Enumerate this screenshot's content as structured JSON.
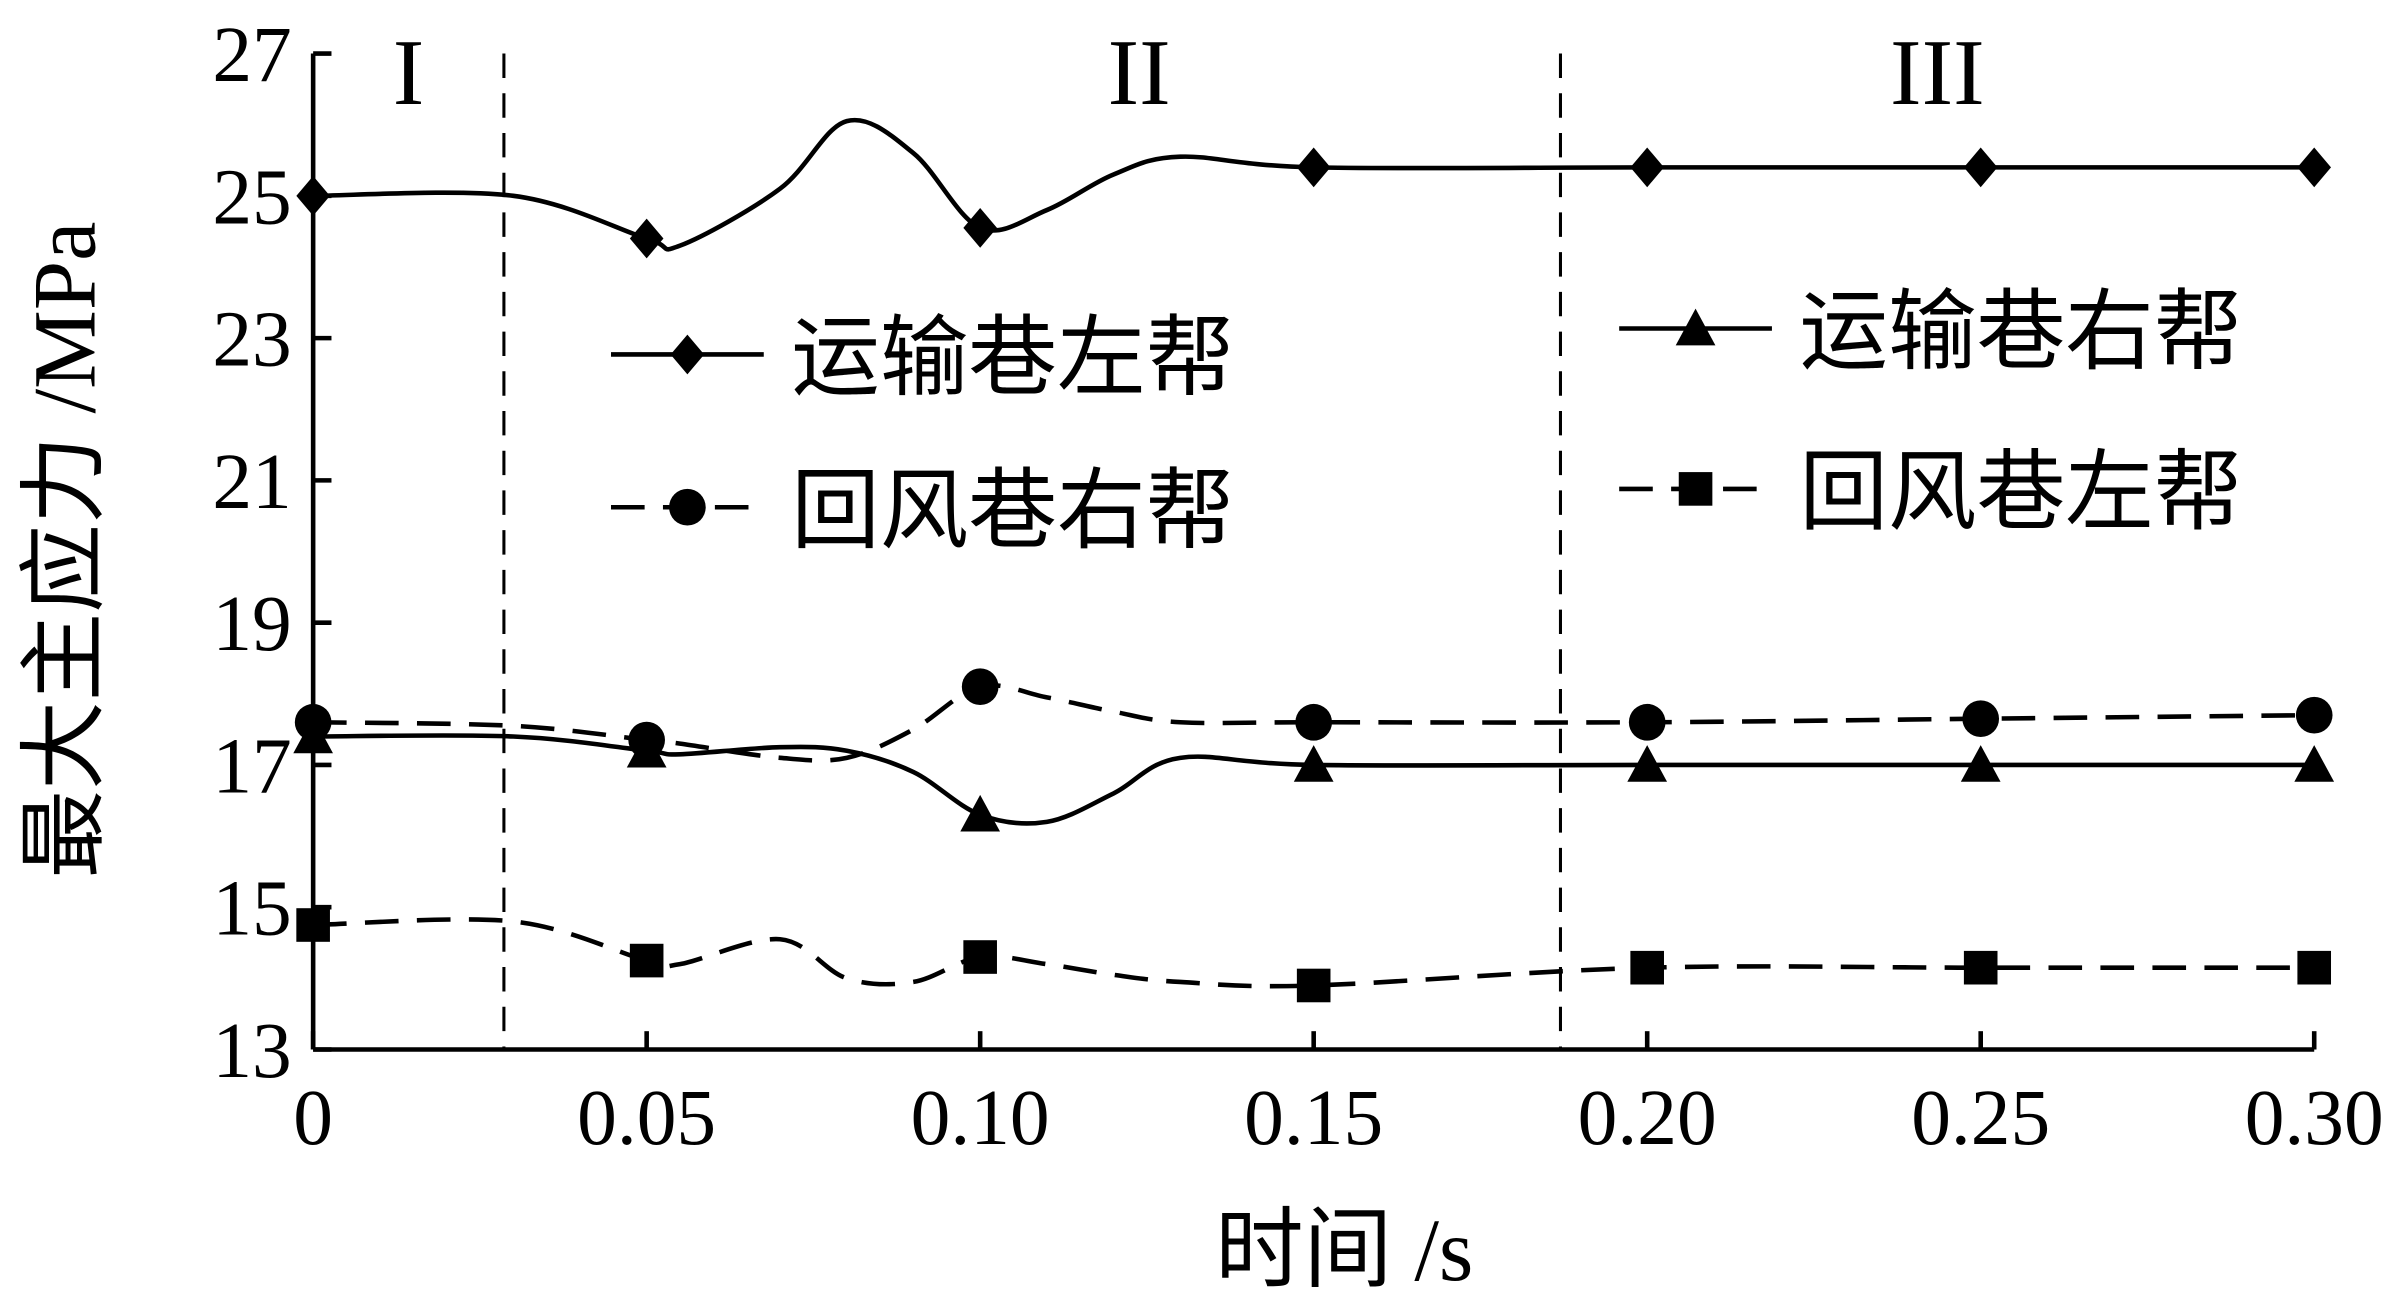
{
  "chart_data": {
    "type": "line",
    "xlabel": "时间 /s",
    "ylabel": "最大主应力 /MPa",
    "xlim": [
      0,
      0.3
    ],
    "ylim": [
      13,
      27
    ],
    "xticks": [
      0,
      0.05,
      {
        "value": 0.1,
        "label": "0.10"
      },
      0.15,
      {
        "value": 0.2,
        "label": "0.20"
      },
      0.25,
      {
        "value": 0.3,
        "label": "0.30"
      }
    ],
    "yticks": [
      13,
      15,
      17,
      19,
      21,
      23,
      25,
      27
    ],
    "dividers": [
      0.0286,
      0.187
    ],
    "region_labels": [
      "I",
      "II",
      "III"
    ],
    "x": [
      0,
      0.03,
      0.05,
      0.055,
      0.07,
      0.08,
      0.09,
      0.1,
      0.11,
      0.12,
      0.13,
      0.15,
      0.2,
      0.25,
      0.3
    ],
    "series": [
      {
        "name": "运输巷左帮",
        "color": "#000000",
        "marker": "diamond",
        "dashed": false,
        "values": [
          25.0,
          25.0,
          24.4,
          24.3,
          25.1,
          26.05,
          25.6,
          24.55,
          24.8,
          25.3,
          25.55,
          25.4,
          25.4,
          25.4,
          25.4
        ]
      },
      {
        "name": "回风巷右帮",
        "color": "#000000",
        "marker": "circle",
        "dashed": true,
        "values": [
          17.6,
          17.55,
          17.35,
          17.3,
          17.1,
          17.1,
          17.5,
          18.1,
          17.95,
          17.75,
          17.6,
          17.6,
          17.6,
          17.65,
          17.7
        ]
      },
      {
        "name": "运输巷右帮",
        "color": "#000000",
        "marker": "triangle",
        "dashed": false,
        "values": [
          17.4,
          17.4,
          17.2,
          17.15,
          17.25,
          17.2,
          16.9,
          16.3,
          16.2,
          16.6,
          17.1,
          17.0,
          17.0,
          17.0,
          17.0
        ]
      },
      {
        "name": "回风巷左帮",
        "color": "#000000",
        "marker": "square",
        "dashed": true,
        "values": [
          14.75,
          14.8,
          14.25,
          14.2,
          14.55,
          14.0,
          13.95,
          14.3,
          14.2,
          14.05,
          13.95,
          13.9,
          14.15,
          14.15,
          14.15
        ]
      }
    ]
  }
}
